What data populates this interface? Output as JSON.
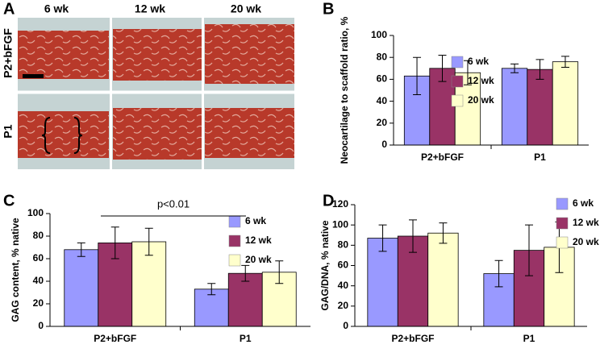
{
  "panel_a": {
    "label": "A",
    "columns": [
      "6 wk",
      "12 wk",
      "20 wk"
    ],
    "rows": [
      "P2+bFGF",
      "P1"
    ]
  },
  "chart_data": [
    {
      "type": "bar",
      "label": "B",
      "y_label": "Neocartilage to scaffold ratio, %",
      "categories": [
        "P2+bFGF",
        "P1"
      ],
      "ylim": [
        0,
        100
      ],
      "yticks": [
        0,
        20,
        40,
        60,
        80,
        100
      ],
      "series": [
        {
          "name": "6 wk",
          "color": "#9999ff",
          "values": [
            63,
            70
          ],
          "errors": [
            17,
            4
          ]
        },
        {
          "name": "12 wk",
          "color": "#993366",
          "values": [
            70,
            69
          ],
          "errors": [
            12,
            9
          ]
        },
        {
          "name": "20 wk",
          "color": "#ffffcc",
          "values": [
            66,
            76
          ],
          "errors": [
            11,
            5
          ]
        }
      ]
    },
    {
      "type": "bar",
      "label": "C",
      "y_label": "GAG content, % native",
      "annotation": "p<0.01",
      "categories": [
        "P2+bFGF",
        "P1"
      ],
      "ylim": [
        0,
        100
      ],
      "yticks": [
        0,
        20,
        40,
        60,
        80,
        100
      ],
      "series": [
        {
          "name": "6 wk",
          "color": "#9999ff",
          "values": [
            68,
            33
          ],
          "errors": [
            6,
            5
          ]
        },
        {
          "name": "12 wk",
          "color": "#993366",
          "values": [
            74,
            47
          ],
          "errors": [
            14,
            7
          ]
        },
        {
          "name": "20 wk",
          "color": "#ffffcc",
          "values": [
            75,
            48
          ],
          "errors": [
            12,
            10
          ]
        }
      ]
    },
    {
      "type": "bar",
      "label": "D",
      "y_label": "GAG/DNA, % native",
      "categories": [
        "P2+bFGF",
        "P1"
      ],
      "ylim": [
        0,
        120
      ],
      "yticks": [
        0,
        20,
        40,
        60,
        80,
        100,
        120
      ],
      "series": [
        {
          "name": "6 wk",
          "color": "#9999ff",
          "values": [
            87,
            52
          ],
          "errors": [
            13,
            13
          ]
        },
        {
          "name": "12 wk",
          "color": "#993366",
          "values": [
            89,
            75
          ],
          "errors": [
            16,
            25
          ]
        },
        {
          "name": "20 wk",
          "color": "#ffffcc",
          "values": [
            92,
            78
          ],
          "errors": [
            10,
            25
          ]
        }
      ]
    }
  ]
}
